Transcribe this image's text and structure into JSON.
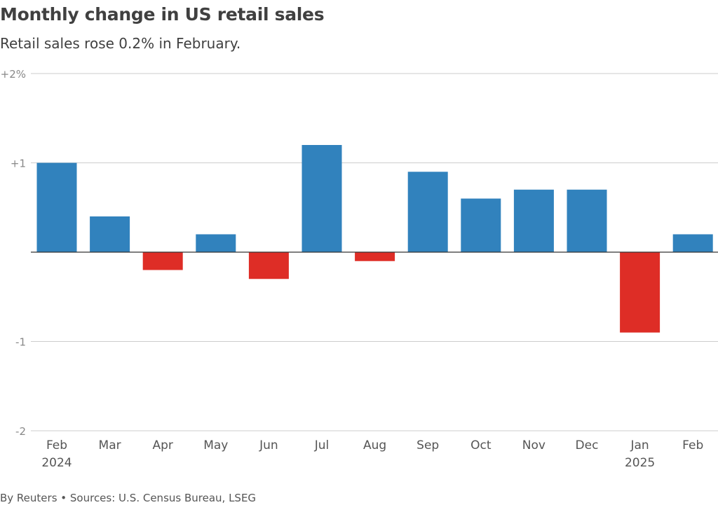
{
  "title": "Monthly change in US retail sales",
  "subtitle": "Retail sales rose 0.2% in February.",
  "footer": "By Reuters • Sources: U.S. Census Bureau, LSEG",
  "colors": {
    "positive": "#3182bd",
    "negative": "#de2d26",
    "grid": "#cccccc",
    "baseline": "#333333",
    "tick_text": "#888888",
    "label_text": "#555555"
  },
  "chart_data": {
    "type": "bar",
    "title": "Monthly change in US retail sales",
    "subtitle": "Retail sales rose 0.2% in February.",
    "categories": [
      "Feb",
      "Mar",
      "Apr",
      "May",
      "Jun",
      "Jul",
      "Aug",
      "Sep",
      "Oct",
      "Nov",
      "Dec",
      "Jan",
      "Feb"
    ],
    "category_sublabels": [
      "2024",
      "",
      "",
      "",
      "",
      "",
      "",
      "",
      "",
      "",
      "",
      "2025",
      ""
    ],
    "values": [
      1.0,
      0.4,
      -0.2,
      0.2,
      -0.3,
      1.2,
      -0.1,
      0.9,
      0.6,
      0.7,
      0.7,
      -0.9,
      0.2
    ],
    "ylim": [
      -2,
      2
    ],
    "y_ticks": [
      2,
      1,
      0,
      -1,
      -2
    ],
    "y_tick_labels": [
      "+2%",
      "+1",
      "",
      "-1",
      "-2"
    ],
    "grid": true,
    "xlabel": "",
    "ylabel": ""
  }
}
